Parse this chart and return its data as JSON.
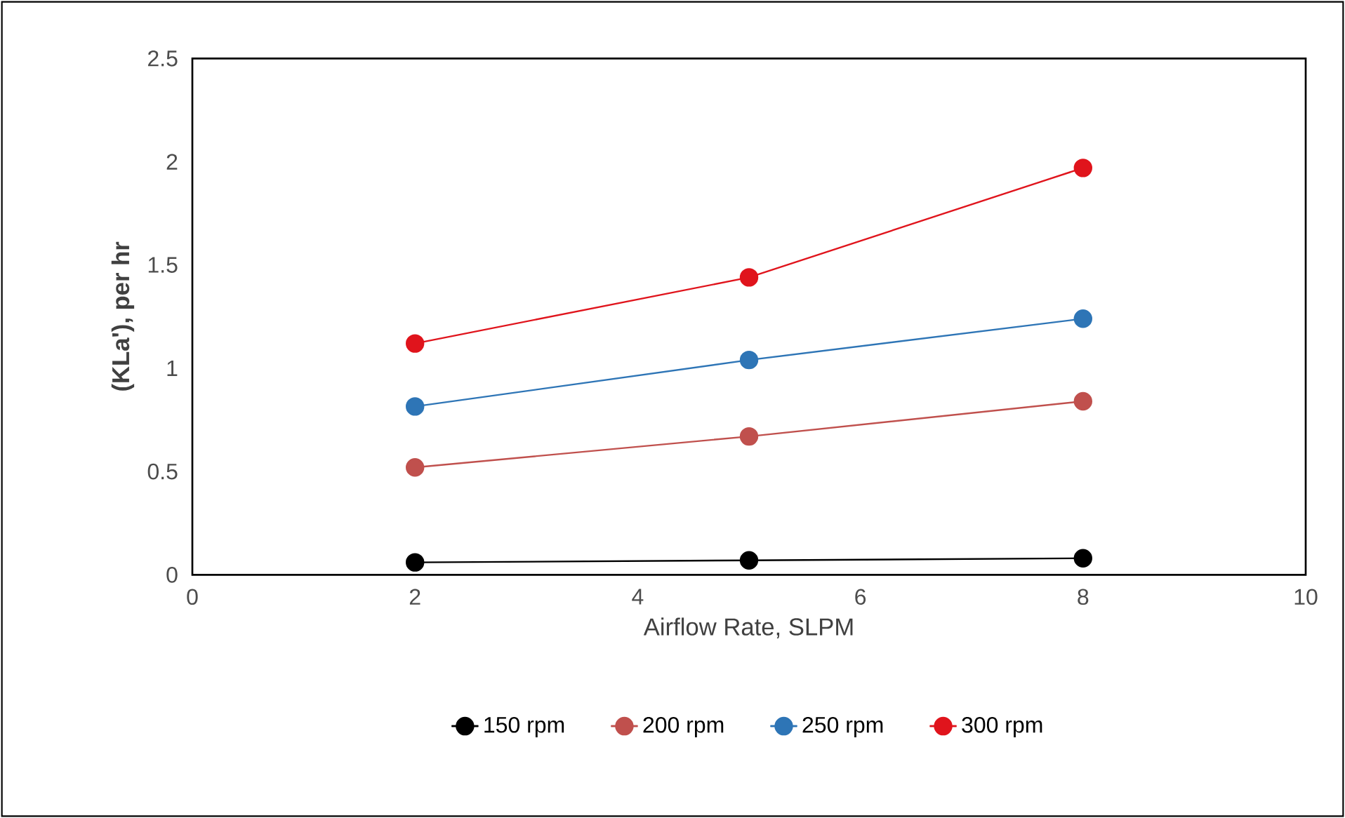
{
  "chart_data": {
    "type": "line",
    "xlabel": "Airflow Rate, SLPM",
    "ylabel": "(KLa'), per hr",
    "x": [
      2,
      5,
      8
    ],
    "series": [
      {
        "name": "150 rpm",
        "color": "#000000",
        "values": [
          0.06,
          0.07,
          0.08
        ]
      },
      {
        "name": "200 rpm",
        "color": "#c0504d",
        "values": [
          0.52,
          0.67,
          0.84
        ]
      },
      {
        "name": "250 rpm",
        "color": "#2e75b6",
        "values": [
          0.815,
          1.04,
          1.24
        ]
      },
      {
        "name": "300 rpm",
        "color": "#e0141c",
        "values": [
          1.12,
          1.44,
          1.97
        ]
      }
    ],
    "xlim": [
      0,
      10
    ],
    "xticks": [
      0,
      2,
      4,
      6,
      8,
      10
    ],
    "ylim": [
      0,
      2.5
    ],
    "yticks": [
      0,
      0.5,
      1,
      1.5,
      2,
      2.5
    ],
    "grid": false,
    "legend": "bottom",
    "marker": "circle",
    "line_style": "solid"
  }
}
